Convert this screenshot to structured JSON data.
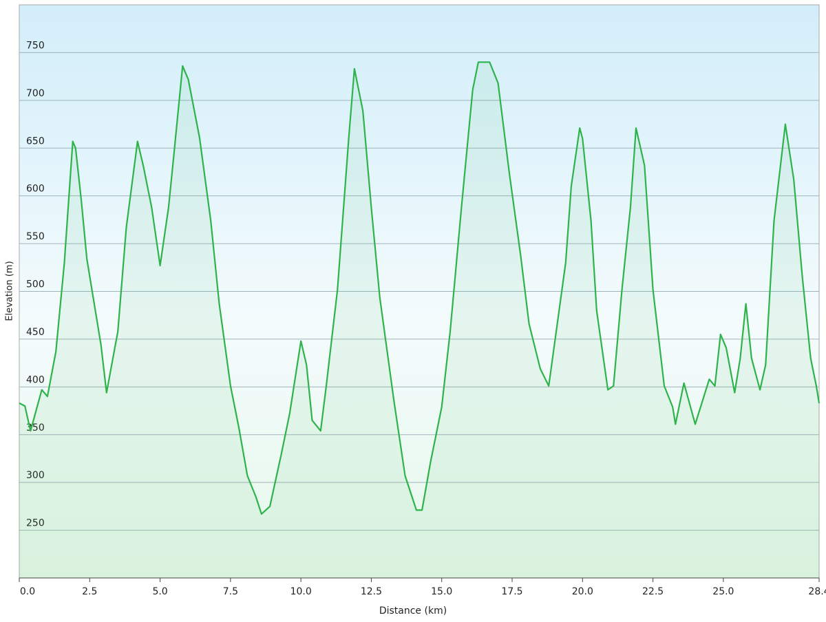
{
  "chart_data": {
    "type": "area",
    "x_label": "Distance (km)",
    "y_label": "Elevation (m)",
    "x": [
      0.0,
      0.2,
      0.4,
      0.8,
      1.0,
      1.3,
      1.6,
      1.9,
      2.0,
      2.2,
      2.4,
      2.9,
      3.1,
      3.5,
      3.8,
      4.2,
      4.4,
      4.7,
      5.0,
      5.3,
      5.5,
      5.8,
      6.0,
      6.4,
      6.8,
      7.1,
      7.5,
      7.8,
      8.1,
      8.4,
      8.6,
      8.9,
      9.3,
      9.6,
      10.0,
      10.2,
      10.4,
      10.7,
      10.9,
      11.3,
      11.7,
      11.9,
      12.2,
      12.5,
      12.8,
      13.3,
      13.7,
      14.1,
      14.3,
      14.6,
      15.0,
      15.3,
      15.7,
      16.1,
      16.3,
      16.7,
      17.0,
      17.4,
      17.8,
      18.1,
      18.5,
      18.8,
      19.0,
      19.4,
      19.6,
      19.9,
      20.0,
      20.3,
      20.5,
      20.9,
      21.1,
      21.4,
      21.7,
      21.9,
      22.2,
      22.5,
      22.9,
      23.2,
      23.3,
      23.6,
      24.0,
      24.5,
      24.7,
      24.9,
      25.1,
      25.4,
      25.6,
      25.8,
      26.0,
      26.3,
      26.5,
      26.8,
      27.2,
      27.5,
      27.8,
      28.1,
      28.3,
      28.4
    ],
    "series": [
      {
        "name": "Elevation",
        "color": "#2db34a",
        "values": [
          383,
          380,
          354,
          397,
          390,
          437,
          530,
          657,
          650,
          596,
          534,
          444,
          394,
          458,
          567,
          657,
          632,
          588,
          527,
          588,
          646,
          736,
          722,
          661,
          574,
          487,
          401,
          357,
          307,
          285,
          267,
          275,
          329,
          372,
          448,
          423,
          365,
          354,
          401,
          502,
          661,
          733,
          689,
          588,
          494,
          386,
          307,
          271,
          271,
          321,
          379,
          458,
          588,
          711,
          740,
          740,
          718,
          624,
          538,
          466,
          419,
          401,
          444,
          530,
          610,
          671,
          660,
          574,
          480,
          397,
          401,
          502,
          588,
          671,
          632,
          502,
          401,
          379,
          361,
          404,
          361,
          408,
          401,
          455,
          441,
          394,
          430,
          487,
          430,
          397,
          423,
          574,
          675,
          617,
          516,
          430,
          401,
          383
        ]
      }
    ],
    "xlim": [
      0,
      28.4
    ],
    "ylim": [
      200,
      800
    ],
    "xticks": [
      {
        "value": 0,
        "label": "0.0"
      },
      2.5,
      {
        "value": 5,
        "label": "5.0"
      },
      7.5,
      {
        "value": 10,
        "label": "10.0"
      },
      12.5,
      {
        "value": 15,
        "label": "15.0"
      },
      17.5,
      {
        "value": 20,
        "label": "20.0"
      },
      22.5,
      {
        "value": 25,
        "label": "25.0"
      },
      28.4
    ],
    "yticks": [
      250,
      300,
      350,
      400,
      450,
      500,
      550,
      600,
      650,
      700,
      750
    ],
    "grid": true
  }
}
